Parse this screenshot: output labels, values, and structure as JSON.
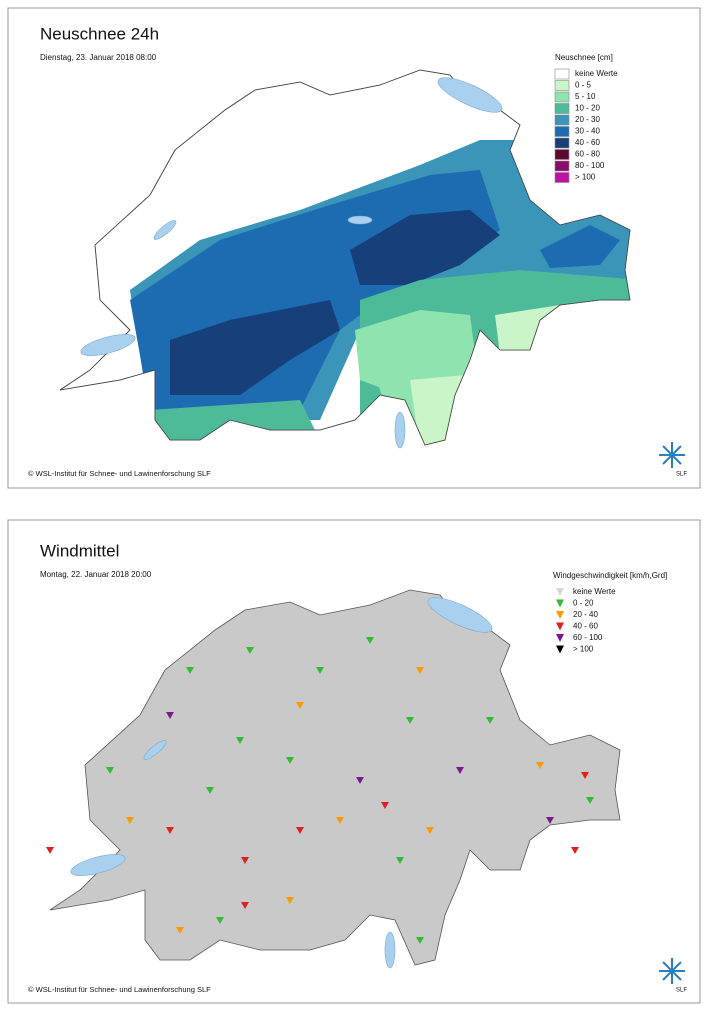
{
  "panels": [
    {
      "title": "Neuschnee 24h",
      "subtitle": "Dienstag, 23. Januar 2018 08:00",
      "legend": {
        "title": "Neuschnee [cm]",
        "items": [
          {
            "label": "keine Werte",
            "color": "#ffffff"
          },
          {
            "label": "0 - 5",
            "color": "#c9f5c8"
          },
          {
            "label": "5 - 10",
            "color": "#8fe3ae"
          },
          {
            "label": "10 - 20",
            "color": "#4dbb9a"
          },
          {
            "label": "20 - 30",
            "color": "#3a95b8"
          },
          {
            "label": "30 - 40",
            "color": "#1d6bb0"
          },
          {
            "label": "40 - 60",
            "color": "#173f7a"
          },
          {
            "label": "60 - 80",
            "color": "#5c0a2e"
          },
          {
            "label": "80 - 100",
            "color": "#8a0c6a"
          },
          {
            "label": "> 100",
            "color": "#c012a0"
          }
        ]
      },
      "copyright": "© WSL-Institut für Schnee- und Lawinenforschung SLF",
      "logo": "SLF"
    },
    {
      "title": "Windmittel",
      "subtitle": "Montag, 22. Januar 2018 20:00",
      "legend": {
        "title": "Windgeschwindigkeit [km/h,Grd]",
        "items": [
          {
            "label": "keine Werte",
            "color": "#d8d8d8"
          },
          {
            "label": "0 - 20",
            "color": "#33bb33"
          },
          {
            "label": "20 - 40",
            "color": "#ff9900"
          },
          {
            "label": "40 - 60",
            "color": "#e02020"
          },
          {
            "label": "60 - 100",
            "color": "#7a1a8a"
          },
          {
            "label": "> 100",
            "color": "#000000"
          }
        ]
      },
      "copyright": "© WSL-Institut für Schnee- und Lawinenforschung SLF",
      "logo": "SLF"
    }
  ]
}
